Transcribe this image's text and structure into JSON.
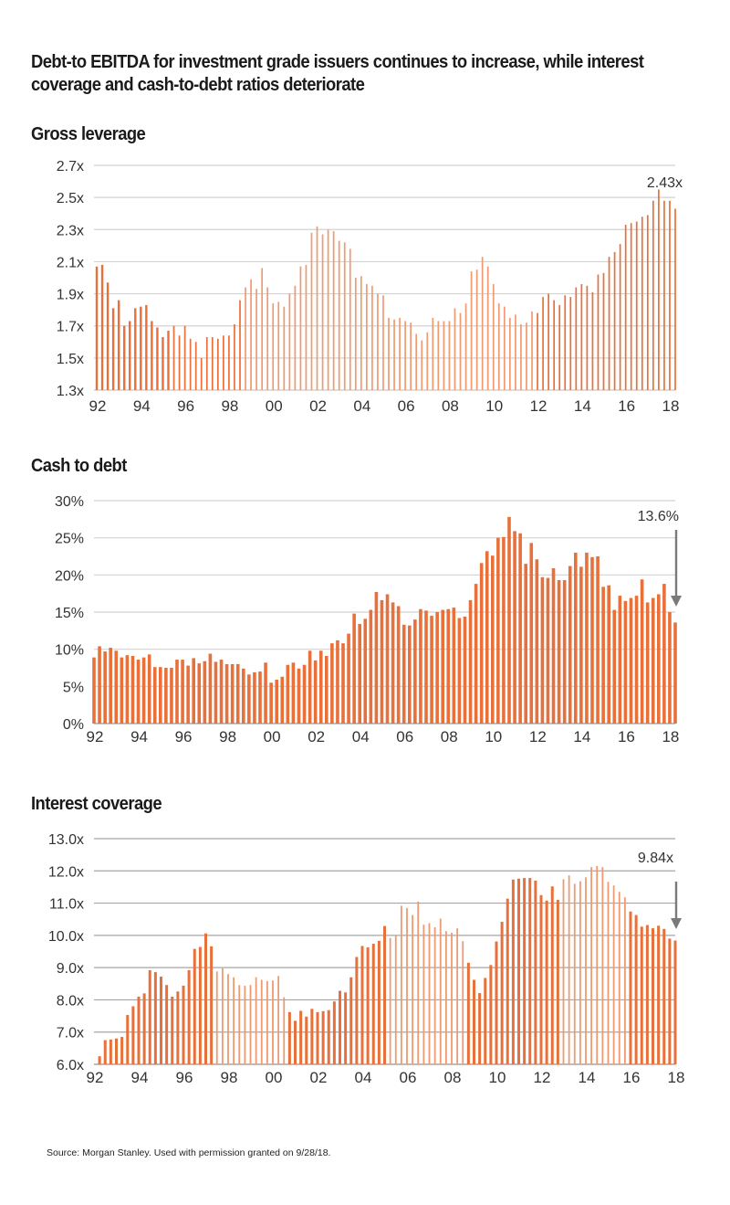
{
  "page": {
    "title": "Debt-to EBITDA for investment grade issuers continues to increase, while interest coverage and cash-to-debt ratios deteriorate",
    "source": "Source: Morgan Stanley. Used with permission granted on 9/28/18."
  },
  "colors": {
    "bar": "#e8703a",
    "bar_light": "#ef9a70",
    "grid": "#cfcfcf",
    "grid_dark": "#a9a9a9",
    "arrow": "#7a7a7a"
  },
  "chart_data": [
    {
      "type": "bar",
      "title": "Gross leverage",
      "xlabel": "",
      "ylabel": "",
      "frequency": "quarterly",
      "start": "1992 Q1",
      "x_tick_labels": [
        "92",
        "94",
        "96",
        "98",
        "00",
        "02",
        "04",
        "06",
        "08",
        "10",
        "12",
        "14",
        "16",
        "18"
      ],
      "y_tick_labels": [
        "1.3x",
        "1.5x",
        "1.7x",
        "1.9x",
        "2.1x",
        "2.3x",
        "2.5x",
        "2.7x"
      ],
      "ylim": [
        1.3,
        2.7
      ],
      "grid": true,
      "annotation": {
        "text": "2.43x",
        "target": "2018 Q2"
      },
      "values": [
        2.07,
        2.08,
        1.97,
        1.81,
        1.86,
        1.7,
        1.73,
        1.81,
        1.82,
        1.83,
        1.73,
        1.69,
        1.63,
        1.67,
        1.7,
        1.64,
        1.7,
        1.62,
        1.6,
        1.5,
        1.63,
        1.63,
        1.62,
        1.64,
        1.64,
        1.71,
        1.86,
        1.94,
        1.99,
        1.93,
        2.06,
        1.94,
        1.84,
        1.85,
        1.82,
        1.9,
        1.95,
        2.07,
        2.08,
        2.28,
        2.32,
        2.27,
        2.3,
        2.29,
        2.23,
        2.22,
        2.18,
        2.0,
        2.01,
        1.96,
        1.95,
        1.9,
        1.89,
        1.75,
        1.74,
        1.75,
        1.73,
        1.72,
        1.65,
        1.61,
        1.66,
        1.75,
        1.73,
        1.73,
        1.73,
        1.81,
        1.78,
        1.84,
        2.04,
        2.05,
        2.13,
        2.07,
        1.96,
        1.84,
        1.82,
        1.75,
        1.77,
        1.71,
        1.72,
        1.79,
        1.78,
        1.88,
        1.9,
        1.86,
        1.83,
        1.89,
        1.88,
        1.94,
        1.96,
        1.95,
        1.91,
        2.02,
        2.03,
        2.13,
        2.16,
        2.21,
        2.33,
        2.34,
        2.35,
        2.38,
        2.39,
        2.48,
        2.55,
        2.48,
        2.48,
        2.43
      ]
    },
    {
      "type": "bar",
      "title": "Cash to debt",
      "xlabel": "",
      "ylabel": "",
      "frequency": "quarterly",
      "start": "1992 Q1",
      "x_tick_labels": [
        "92",
        "94",
        "96",
        "98",
        "00",
        "02",
        "04",
        "06",
        "08",
        "10",
        "12",
        "14",
        "16",
        "18"
      ],
      "y_tick_labels": [
        "0%",
        "5%",
        "10%",
        "15%",
        "20%",
        "25%",
        "30%"
      ],
      "ylim": [
        0,
        30
      ],
      "grid": true,
      "annotation": {
        "text": "13.6%",
        "target": "2018 Q2",
        "arrow": "down"
      },
      "values": [
        8.9,
        10.4,
        9.7,
        10.2,
        9.8,
        8.9,
        9.2,
        9.1,
        8.6,
        8.9,
        9.3,
        7.6,
        7.6,
        7.5,
        7.5,
        8.6,
        8.6,
        7.8,
        8.8,
        8.1,
        8.4,
        9.4,
        8.3,
        8.6,
        8.0,
        8.0,
        8.0,
        7.4,
        6.6,
        6.9,
        7.0,
        8.2,
        5.5,
        5.9,
        6.3,
        7.9,
        8.2,
        7.4,
        7.9,
        9.8,
        8.5,
        9.8,
        9.1,
        10.8,
        11.2,
        10.8,
        12.1,
        14.8,
        13.4,
        14.1,
        15.3,
        17.7,
        16.6,
        17.4,
        16.3,
        15.8,
        13.3,
        13.2,
        14.0,
        15.4,
        15.2,
        14.5,
        15.0,
        15.3,
        15.4,
        15.6,
        14.2,
        14.4,
        16.6,
        18.8,
        21.6,
        23.2,
        22.6,
        25.0,
        25.1,
        27.8,
        25.9,
        25.6,
        21.5,
        24.3,
        22.1,
        19.7,
        19.6,
        20.9,
        19.3,
        19.3,
        21.2,
        23.0,
        21.1,
        23.0,
        22.4,
        22.5,
        18.4,
        18.6,
        15.3,
        17.2,
        16.5,
        16.9,
        17.2,
        19.4,
        16.3,
        16.9,
        17.4,
        18.8,
        15.0,
        13.6
      ]
    },
    {
      "type": "bar",
      "title": "Interest coverage",
      "xlabel": "",
      "ylabel": "",
      "frequency": "quarterly",
      "start": "1992 Q1",
      "x_tick_labels": [
        "92",
        "94",
        "96",
        "98",
        "00",
        "02",
        "04",
        "06",
        "08",
        "10",
        "12",
        "14",
        "16",
        "18"
      ],
      "y_tick_labels": [
        "6.0x",
        "7.0x",
        "8.0x",
        "9.0x",
        "10.0x",
        "11.0x",
        "12.0x",
        "13.0x"
      ],
      "ylim": [
        6.0,
        13.0
      ],
      "grid": true,
      "annotation": {
        "text": "9.84x",
        "target": "2018 Q2",
        "arrow": "down"
      },
      "values": [
        null,
        6.25,
        6.75,
        6.77,
        6.8,
        6.85,
        7.53,
        7.8,
        8.1,
        8.2,
        8.92,
        8.86,
        8.72,
        8.46,
        8.1,
        8.26,
        8.44,
        8.92,
        9.58,
        9.64,
        10.06,
        9.66,
        8.88,
        8.98,
        8.8,
        8.7,
        8.46,
        8.44,
        8.46,
        8.7,
        8.62,
        8.58,
        8.6,
        8.74,
        8.08,
        7.62,
        7.35,
        7.66,
        7.48,
        7.72,
        7.62,
        7.65,
        7.68,
        7.95,
        8.28,
        8.23,
        8.7,
        9.33,
        9.67,
        9.63,
        9.74,
        9.83,
        10.29,
        9.92,
        9.98,
        10.92,
        10.85,
        10.63,
        11.05,
        10.33,
        10.38,
        10.25,
        10.52,
        10.13,
        10.08,
        10.22,
        9.82,
        9.15,
        8.62,
        8.21,
        8.68,
        9.08,
        9.81,
        10.42,
        11.14,
        11.73,
        11.76,
        11.78,
        11.78,
        11.7,
        11.25,
        11.08,
        11.52,
        11.1,
        11.74,
        11.86,
        11.6,
        11.68,
        11.8,
        12.12,
        12.15,
        12.12,
        11.66,
        11.55,
        11.35,
        11.18,
        10.74,
        10.63,
        10.27,
        10.32,
        10.22,
        10.3,
        10.2,
        9.9,
        9.84
      ]
    }
  ]
}
